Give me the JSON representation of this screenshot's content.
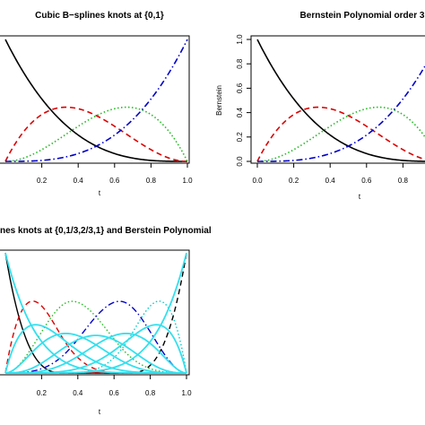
{
  "chart_data": [
    {
      "type": "line",
      "title": "Cubic B−splines knots at {0,1}",
      "xlabel": "t",
      "ylabel": "",
      "xlim": [
        0,
        1
      ],
      "ylim": [
        0,
        1
      ],
      "x_ticks": [
        "0.2",
        "0.4",
        "0.6",
        "0.8",
        "1.0"
      ],
      "y_ticks": [],
      "basis": "bernstein3",
      "series": [
        {
          "curve": "b0",
          "color": "#000000",
          "style": "solid",
          "width": 1.6
        },
        {
          "curve": "b1",
          "color": "#dd0000",
          "style": "dashed",
          "width": 1.6
        },
        {
          "curve": "b2",
          "color": "#22bb22",
          "style": "dotted",
          "width": 1.6
        },
        {
          "curve": "b3",
          "color": "#0000cc",
          "style": "dashdot",
          "width": 1.6
        }
      ]
    },
    {
      "type": "line",
      "title": "Bernstein Polynomial order 3",
      "xlabel": "t",
      "ylabel": "Bernstein",
      "xlim": [
        0,
        1
      ],
      "ylim": [
        0,
        1
      ],
      "x_ticks": [
        "0.0",
        "0.2",
        "0.4",
        "0.6",
        "0.8"
      ],
      "y_ticks": [
        "0.0",
        "0.2",
        "0.4",
        "0.6",
        "0.8",
        "1.0"
      ],
      "basis": "bernstein3",
      "series": [
        {
          "curve": "b0",
          "color": "#000000",
          "style": "solid",
          "width": 1.6
        },
        {
          "curve": "b1",
          "color": "#dd0000",
          "style": "dashed",
          "width": 1.6
        },
        {
          "curve": "b2",
          "color": "#22bb22",
          "style": "dotted",
          "width": 1.6
        },
        {
          "curve": "b3",
          "color": "#0000cc",
          "style": "dashdot",
          "width": 1.6
        }
      ]
    },
    {
      "type": "line",
      "title": "nes knots at {0,1/3,2/3,1} and Berstein Polynomial",
      "xlabel": "t",
      "ylabel": "",
      "xlim": [
        0,
        1
      ],
      "ylim": [
        0,
        1
      ],
      "x_ticks": [
        "0.2",
        "0.4",
        "0.6",
        "0.8",
        "1.0"
      ],
      "y_ticks": [],
      "basis": "bspline_knots_0_1/3_2/3_1_plus_bernstein6",
      "series": [
        {
          "curve": "s0",
          "color": "#000000",
          "style": "solid",
          "width": 1.4
        },
        {
          "curve": "s1",
          "color": "#dd0000",
          "style": "dashed",
          "width": 1.4
        },
        {
          "curve": "s2",
          "color": "#22bb22",
          "style": "dotted",
          "width": 1.4
        },
        {
          "curve": "s3",
          "color": "#0000cc",
          "style": "dashdot",
          "width": 1.4
        },
        {
          "curve": "s4",
          "color": "#00cccc",
          "style": "dotted",
          "width": 1.4
        },
        {
          "curve": "s5",
          "color": "#000000",
          "style": "dashed",
          "width": 1.4
        },
        {
          "curve": "s6",
          "color": "#cc0000",
          "style": "solid",
          "width": 1.6
        },
        {
          "curve": "p0",
          "color": "#33e0ee",
          "style": "solid",
          "width": 1.8
        },
        {
          "curve": "p1",
          "color": "#33e0ee",
          "style": "solid",
          "width": 1.8
        },
        {
          "curve": "p2",
          "color": "#33e0ee",
          "style": "solid",
          "width": 1.8
        },
        {
          "curve": "p3",
          "color": "#33e0ee",
          "style": "solid",
          "width": 1.8
        },
        {
          "curve": "p4",
          "color": "#33e0ee",
          "style": "solid",
          "width": 1.8
        },
        {
          "curve": "p5",
          "color": "#33e0ee",
          "style": "solid",
          "width": 1.8
        },
        {
          "curve": "p6",
          "color": "#33e0ee",
          "style": "solid",
          "width": 1.8
        }
      ]
    }
  ]
}
